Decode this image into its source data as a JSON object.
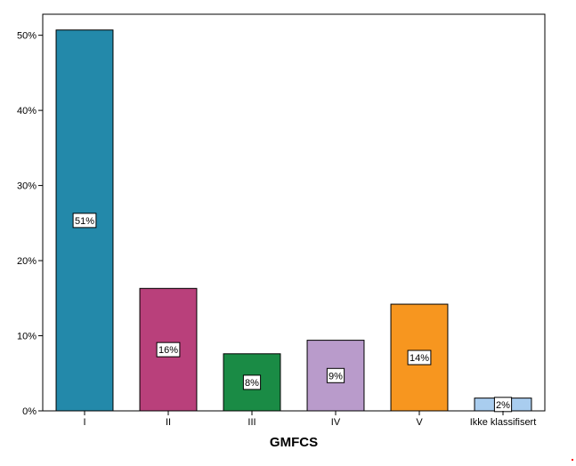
{
  "chart_data": {
    "type": "bar",
    "title": "",
    "xlabel": "GMFCS",
    "ylabel": "",
    "categories": [
      "I",
      "II",
      "III",
      "IV",
      "V",
      "Ikke klassifisert"
    ],
    "values": [
      50.7,
      16.3,
      7.6,
      9.4,
      14.2,
      1.7
    ],
    "data_labels": [
      "51%",
      "16%",
      "8%",
      "9%",
      "14%",
      "2%"
    ],
    "colors": [
      "#2389AA",
      "#B9407B",
      "#1A8B45",
      "#B99BCB",
      "#F7961F",
      "#A9CDEF"
    ],
    "yticks": [
      0,
      10,
      20,
      30,
      40,
      50
    ],
    "ytick_labels": [
      "0%",
      "10%",
      "20%",
      "30%",
      "40%",
      "50%"
    ],
    "ylim": [
      0,
      52.8
    ],
    "grid": false,
    "legend": "none"
  }
}
